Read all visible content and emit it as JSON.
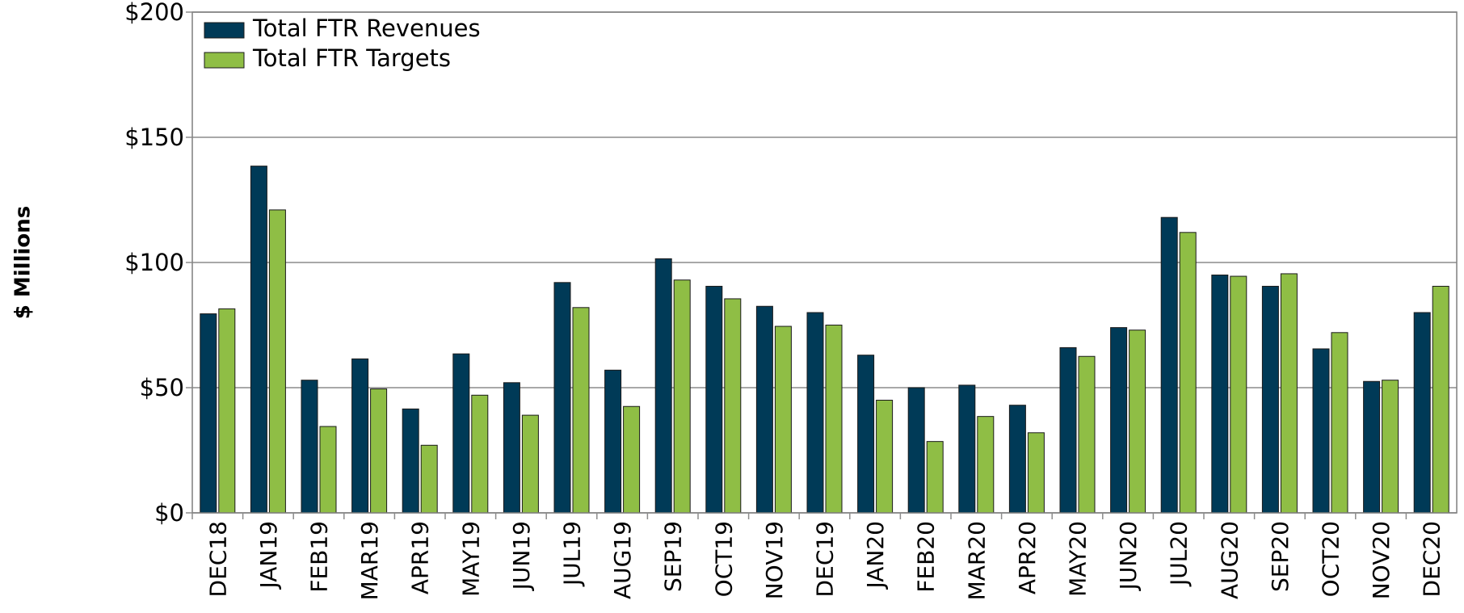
{
  "chart_data": {
    "type": "bar",
    "title": "",
    "xlabel": "",
    "ylabel": "$ Millions",
    "ylim": [
      0,
      200
    ],
    "yticks": [
      0,
      50,
      100,
      150,
      200
    ],
    "ytick_labels": [
      "$0",
      "$50",
      "$100",
      "$150",
      "$200"
    ],
    "grid": true,
    "legend_position": "top-left",
    "categories": [
      "DEC18",
      "JAN19",
      "FEB19",
      "MAR19",
      "APR19",
      "MAY19",
      "JUN19",
      "JUL19",
      "AUG19",
      "SEP19",
      "OCT19",
      "NOV19",
      "DEC19",
      "JAN20",
      "FEB20",
      "MAR20",
      "APR20",
      "MAY20",
      "JUN20",
      "JUL20",
      "AUG20",
      "SEP20",
      "OCT20",
      "NOV20",
      "DEC20"
    ],
    "series": [
      {
        "name": "Total FTR Revenues",
        "color": "#003a57",
        "values": [
          79.5,
          138.5,
          53,
          61.5,
          41.5,
          63.5,
          52,
          92,
          57,
          101.5,
          90.5,
          82.5,
          80,
          63,
          50,
          51,
          43,
          66,
          74,
          118,
          95,
          90.5,
          65.5,
          52.5,
          80
        ]
      },
      {
        "name": "Total FTR Targets",
        "color": "#8fbe45",
        "values": [
          81.5,
          121,
          34.5,
          49.5,
          27,
          47,
          39,
          82,
          42.5,
          93,
          85.5,
          74.5,
          75,
          45,
          28.5,
          38.5,
          32,
          62.5,
          73,
          112,
          94.5,
          95.5,
          72,
          53,
          90.5
        ]
      }
    ]
  }
}
